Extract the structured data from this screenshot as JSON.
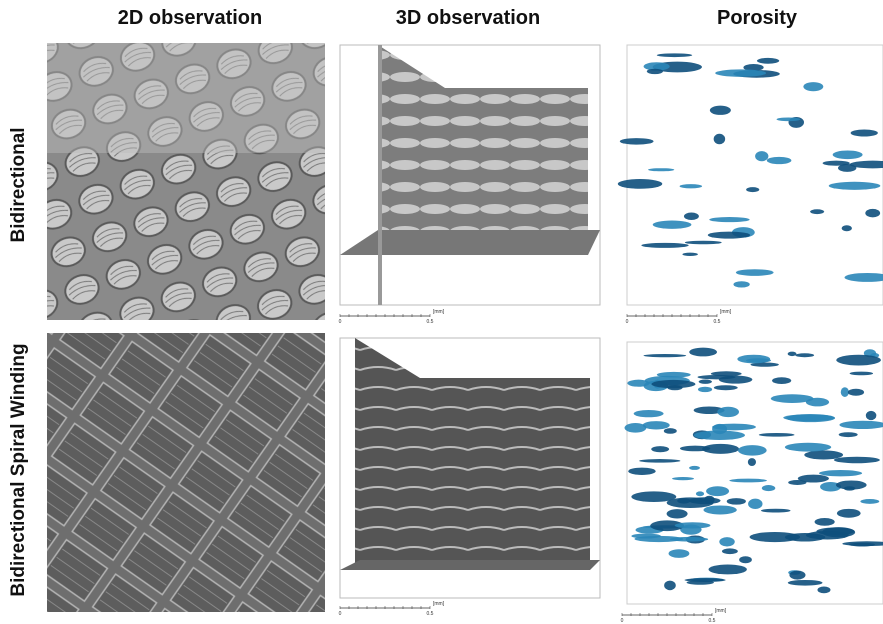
{
  "columns": [
    "2D observation",
    "3D observation",
    "Porosity"
  ],
  "rows": [
    "Bidirectional",
    "Bidirectional Spiral Winding"
  ],
  "scale_bar": {
    "start": "0",
    "end": "0.5",
    "unit": "[mm]"
  }
}
